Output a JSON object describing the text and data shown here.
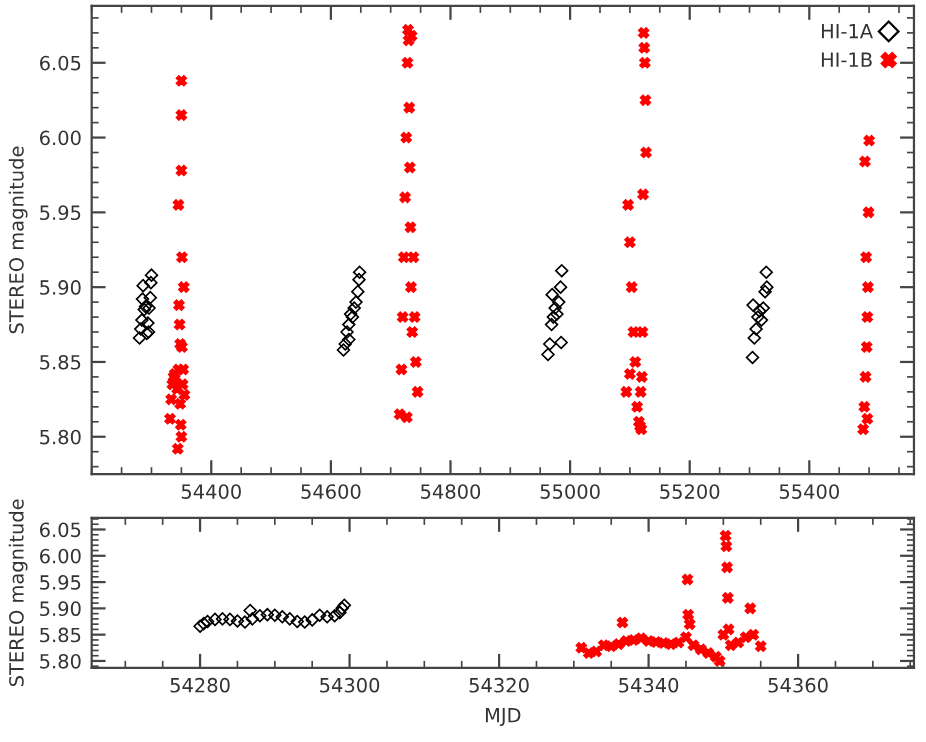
{
  "chart_data": [
    {
      "type": "scatter",
      "ylabel": "STEREO magnitude",
      "xlim": [
        54200,
        55575
      ],
      "ylim": [
        5.775,
        6.088
      ],
      "xticks": [
        54400,
        54600,
        54800,
        55000,
        55200,
        55400
      ],
      "yticks": [
        {
          "value": 5.8,
          "label": "5.80"
        },
        {
          "value": 5.85,
          "label": "5.85"
        },
        {
          "value": 5.9,
          "label": "5.90"
        },
        {
          "value": 5.95,
          "label": "5.95"
        },
        {
          "value": 6.0,
          "label": "6.00"
        },
        {
          "value": 6.05,
          "label": "6.05"
        }
      ],
      "legend": "top right",
      "grid": false,
      "series": [
        {
          "name": "HI-1A",
          "color": "#000000",
          "marker": "diamond",
          "x": [
            54280,
            54282,
            54284,
            54286,
            54288,
            54290,
            54292,
            54294,
            54296,
            54298,
            54299,
            54300,
            54285,
            54295,
            54621,
            54624,
            54627,
            54630,
            54633,
            54636,
            54639,
            54642,
            54645,
            54647,
            54648,
            54630,
            54963,
            54966,
            54969,
            54972,
            54975,
            54978,
            54981,
            54984,
            54986,
            54985,
            54970,
            55305,
            55308,
            55311,
            55314,
            55317,
            55320,
            55323,
            55326,
            55329,
            55328,
            55306
          ],
          "values": [
            5.866,
            5.872,
            5.878,
            5.901,
            5.885,
            5.887,
            5.869,
            5.876,
            5.886,
            5.893,
            5.903,
            5.908,
            5.892,
            5.87,
            5.858,
            5.862,
            5.87,
            5.875,
            5.882,
            5.88,
            5.886,
            5.89,
            5.897,
            5.905,
            5.91,
            5.865,
            5.855,
            5.862,
            5.875,
            5.88,
            5.886,
            5.882,
            5.89,
            5.9,
            5.911,
            5.863,
            5.895,
            5.853,
            5.866,
            5.872,
            5.88,
            5.884,
            5.878,
            5.886,
            5.897,
            5.9,
            5.91,
            5.888
          ]
        },
        {
          "name": "HI-1B",
          "color": "#ff0000",
          "marker": "cross",
          "x": [
            54331,
            54333,
            54335,
            54337,
            54339,
            54341,
            54343,
            54345,
            54345,
            54346,
            54347,
            54348,
            54349,
            54350,
            54350,
            54350,
            54350,
            54351,
            54351,
            54352,
            54353,
            54354,
            54355,
            54344,
            54348,
            54715,
            54718,
            54720,
            54722,
            54724,
            54726,
            54728,
            54729,
            54730,
            54731,
            54732,
            54733,
            54734,
            54736,
            54738,
            54740,
            54742,
            54745,
            54727,
            54735,
            55094,
            55097,
            55100,
            55103,
            55106,
            55109,
            55112,
            55115,
            55118,
            55120,
            55121,
            55122,
            55123,
            55124,
            55125,
            55126,
            55127,
            55119,
            55117,
            55100,
            55490,
            55492,
            55494,
            55496,
            55497,
            55498,
            55499,
            55500,
            55495,
            55493,
            55497
          ],
          "values": [
            5.812,
            5.825,
            5.835,
            5.84,
            5.842,
            5.836,
            5.832,
            5.845,
            5.955,
            5.888,
            5.875,
            5.822,
            5.808,
            5.8,
            6.038,
            6.015,
            5.978,
            5.92,
            5.86,
            5.835,
            5.845,
            5.9,
            5.828,
            5.792,
            5.862,
            5.815,
            5.845,
            5.88,
            5.92,
            5.96,
            6.0,
            6.05,
            6.072,
            6.065,
            6.02,
            5.98,
            5.94,
            5.9,
            5.87,
            5.92,
            5.88,
            5.85,
            5.83,
            5.813,
            6.068,
            5.83,
            5.955,
            5.93,
            5.9,
            5.87,
            5.85,
            5.82,
            5.81,
            5.83,
            5.84,
            5.87,
            5.962,
            6.07,
            6.06,
            6.05,
            6.025,
            5.99,
            5.805,
            5.807,
            5.842,
            5.805,
            5.82,
            5.84,
            5.86,
            5.88,
            5.9,
            5.95,
            5.998,
            5.92,
            5.984,
            5.812
          ]
        }
      ]
    },
    {
      "type": "scatter",
      "xlabel": "MJD",
      "ylabel": "STEREO magnitude",
      "xlim": [
        54265.5,
        54375.5
      ],
      "ylim": [
        5.787,
        6.072
      ],
      "xticks": [
        54280,
        54300,
        54320,
        54340,
        54360
      ],
      "yticks": [
        {
          "value": 5.8,
          "label": "5.80"
        },
        {
          "value": 5.85,
          "label": "5.85"
        },
        {
          "value": 5.9,
          "label": "5.90"
        },
        {
          "value": 5.95,
          "label": "5.95"
        },
        {
          "value": 6.0,
          "label": "6.00"
        },
        {
          "value": 6.05,
          "label": "6.05"
        }
      ],
      "grid": false,
      "series": [
        {
          "color": "#000000",
          "marker": "diamond",
          "x": [
            54280,
            54280.5,
            54281,
            54282,
            54283,
            54284,
            54285,
            54286,
            54286.7,
            54287,
            54288,
            54289,
            54290,
            54291,
            54292,
            54293,
            54294,
            54295,
            54296,
            54297,
            54298,
            54298.7,
            54299,
            54299.3
          ],
          "values": [
            5.866,
            5.871,
            5.875,
            5.879,
            5.88,
            5.879,
            5.876,
            5.874,
            5.896,
            5.88,
            5.886,
            5.888,
            5.887,
            5.884,
            5.88,
            5.875,
            5.874,
            5.878,
            5.887,
            5.884,
            5.886,
            5.892,
            5.9,
            5.906
          ]
        },
        {
          "color": "#ff0000",
          "marker": "cross",
          "x": [
            54331,
            54332,
            54333,
            54334,
            54335,
            54336,
            54336.5,
            54337,
            54338,
            54339,
            54340,
            54341,
            54342,
            54343,
            54344,
            54345,
            54345.2,
            54345.3,
            54345.5,
            54346,
            54347,
            54348,
            54349,
            54349.5,
            54350,
            54350.3,
            54350.4,
            54350.5,
            54350.6,
            54350.7,
            54351,
            54352,
            54353,
            54353.6,
            54354,
            54355
          ],
          "values": [
            5.825,
            5.815,
            5.818,
            5.83,
            5.828,
            5.832,
            5.873,
            5.838,
            5.84,
            5.843,
            5.838,
            5.836,
            5.834,
            5.832,
            5.835,
            5.845,
            5.955,
            5.888,
            5.87,
            5.83,
            5.822,
            5.815,
            5.808,
            5.8,
            5.85,
            6.038,
            6.018,
            5.978,
            5.92,
            5.86,
            5.83,
            5.835,
            5.845,
            5.9,
            5.85,
            5.828
          ]
        }
      ]
    }
  ]
}
